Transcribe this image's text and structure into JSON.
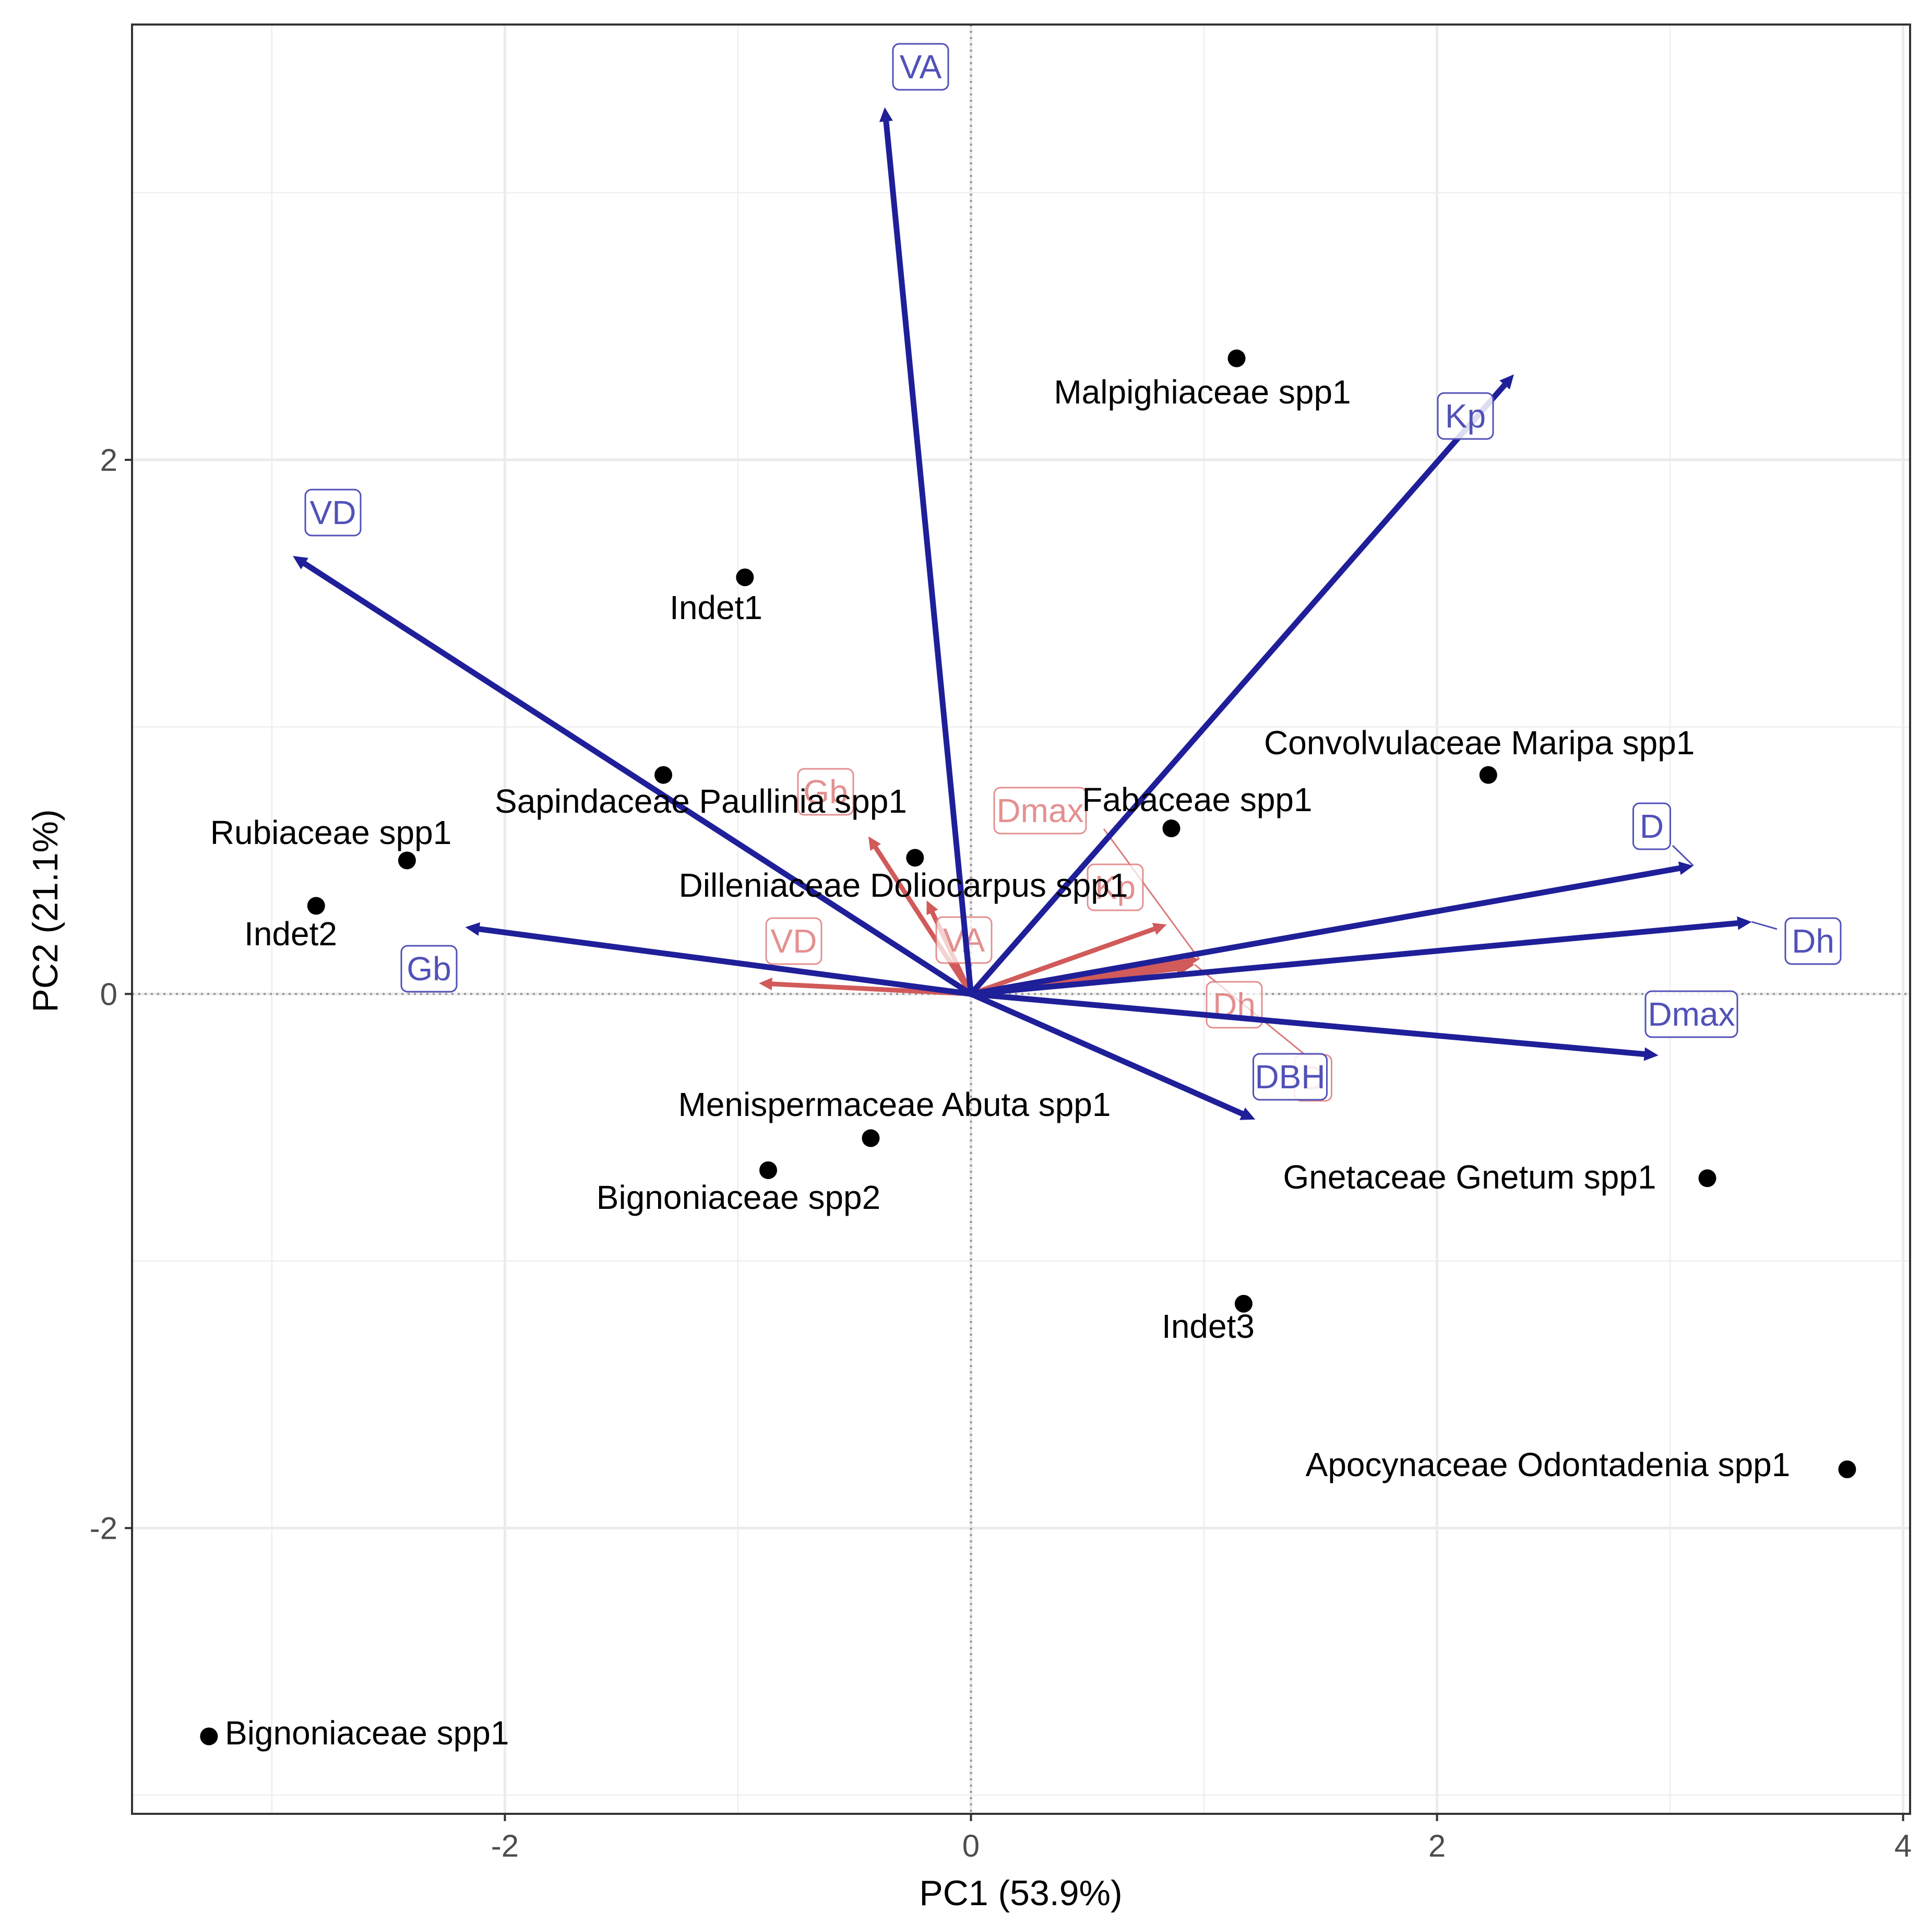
{
  "chart_data": {
    "type": "scatter",
    "subtype": "pca-biplot",
    "xlabel": "PC1 (53.9%)",
    "ylabel": "PC2 (21.1%)",
    "xlim": [
      -3.6,
      4.03
    ],
    "ylim": [
      -3.07,
      3.63
    ],
    "xticks": [
      {
        "value": -2,
        "label": "-2"
      },
      {
        "value": 0,
        "label": "0"
      },
      {
        "value": 2,
        "label": "2"
      },
      {
        "value": 4,
        "label": "4"
      }
    ],
    "yticks": [
      {
        "value": -2,
        "label": "-2"
      },
      {
        "value": 0,
        "label": "0"
      },
      {
        "value": 2,
        "label": "2"
      }
    ],
    "grid": true,
    "colors": {
      "blue_arrow": "#1f1f99",
      "blue_label": "#5151b8",
      "red_arrow": "#d15a5a",
      "red_label": "#e07d7d",
      "points": "#000000",
      "grid": "#ebebeb",
      "zero_line": "#999999"
    },
    "points": [
      {
        "name": "Malpighiaceae spp1",
        "x": 1.14,
        "y": 2.38
      },
      {
        "name": "Indet1",
        "x": -0.97,
        "y": 1.56
      },
      {
        "name": "Convolvulaceae Maripa spp1",
        "x": 2.22,
        "y": 0.82
      },
      {
        "name": "Sapindaceae Paullinia spp1",
        "x": -1.32,
        "y": 0.82
      },
      {
        "name": "Fabaceae spp1",
        "x": 0.86,
        "y": 0.62
      },
      {
        "name": "Rubiaceae spp1",
        "x": -2.42,
        "y": 0.5
      },
      {
        "name": "Dilleniaceae Doliocarpus spp1",
        "x": -0.24,
        "y": 0.51
      },
      {
        "name": "Indet2",
        "x": -2.81,
        "y": 0.33
      },
      {
        "name": "Menispermaceae Abuta spp1",
        "x": -0.43,
        "y": -0.54
      },
      {
        "name": "Bignoniaceae spp2",
        "x": -0.87,
        "y": -0.66
      },
      {
        "name": "Gnetaceae Gnetum spp1",
        "x": 3.16,
        "y": -0.69
      },
      {
        "name": "Indet3",
        "x": 1.17,
        "y": -1.16
      },
      {
        "name": "Apocynaceae Odontadenia spp1",
        "x": 3.76,
        "y": -1.78
      },
      {
        "name": "Bignoniaceae spp1",
        "x": -3.27,
        "y": -2.78
      }
    ],
    "loadings_blue": [
      {
        "name": "VA",
        "x": -0.37,
        "y": 3.32
      },
      {
        "name": "VD",
        "x": -2.91,
        "y": 1.64
      },
      {
        "name": "Kp",
        "x": 2.33,
        "y": 2.32
      },
      {
        "name": "D",
        "x": 3.1,
        "y": 0.48
      },
      {
        "name": "Dh",
        "x": 3.35,
        "y": 0.27
      },
      {
        "name": "Dmax",
        "x": 2.95,
        "y": -0.23
      },
      {
        "name": "DBH",
        "x": 1.22,
        "y": -0.47
      },
      {
        "name": "Gb",
        "x": -2.17,
        "y": 0.25
      }
    ],
    "loadings_red": [
      {
        "name": "Gb",
        "x": -0.44,
        "y": 0.59
      },
      {
        "name": "Dmax",
        "x": 0.98,
        "y": 0.13
      },
      {
        "name": "Kp",
        "x": 0.84,
        "y": 0.26
      },
      {
        "name": "VD",
        "x": -0.91,
        "y": 0.04
      },
      {
        "name": "VA",
        "x": -0.19,
        "y": 0.35
      },
      {
        "name": "Dh",
        "x": 0.94,
        "y": 0.1
      },
      {
        "name": "D",
        "x": 0.96,
        "y": 0.11
      }
    ]
  }
}
